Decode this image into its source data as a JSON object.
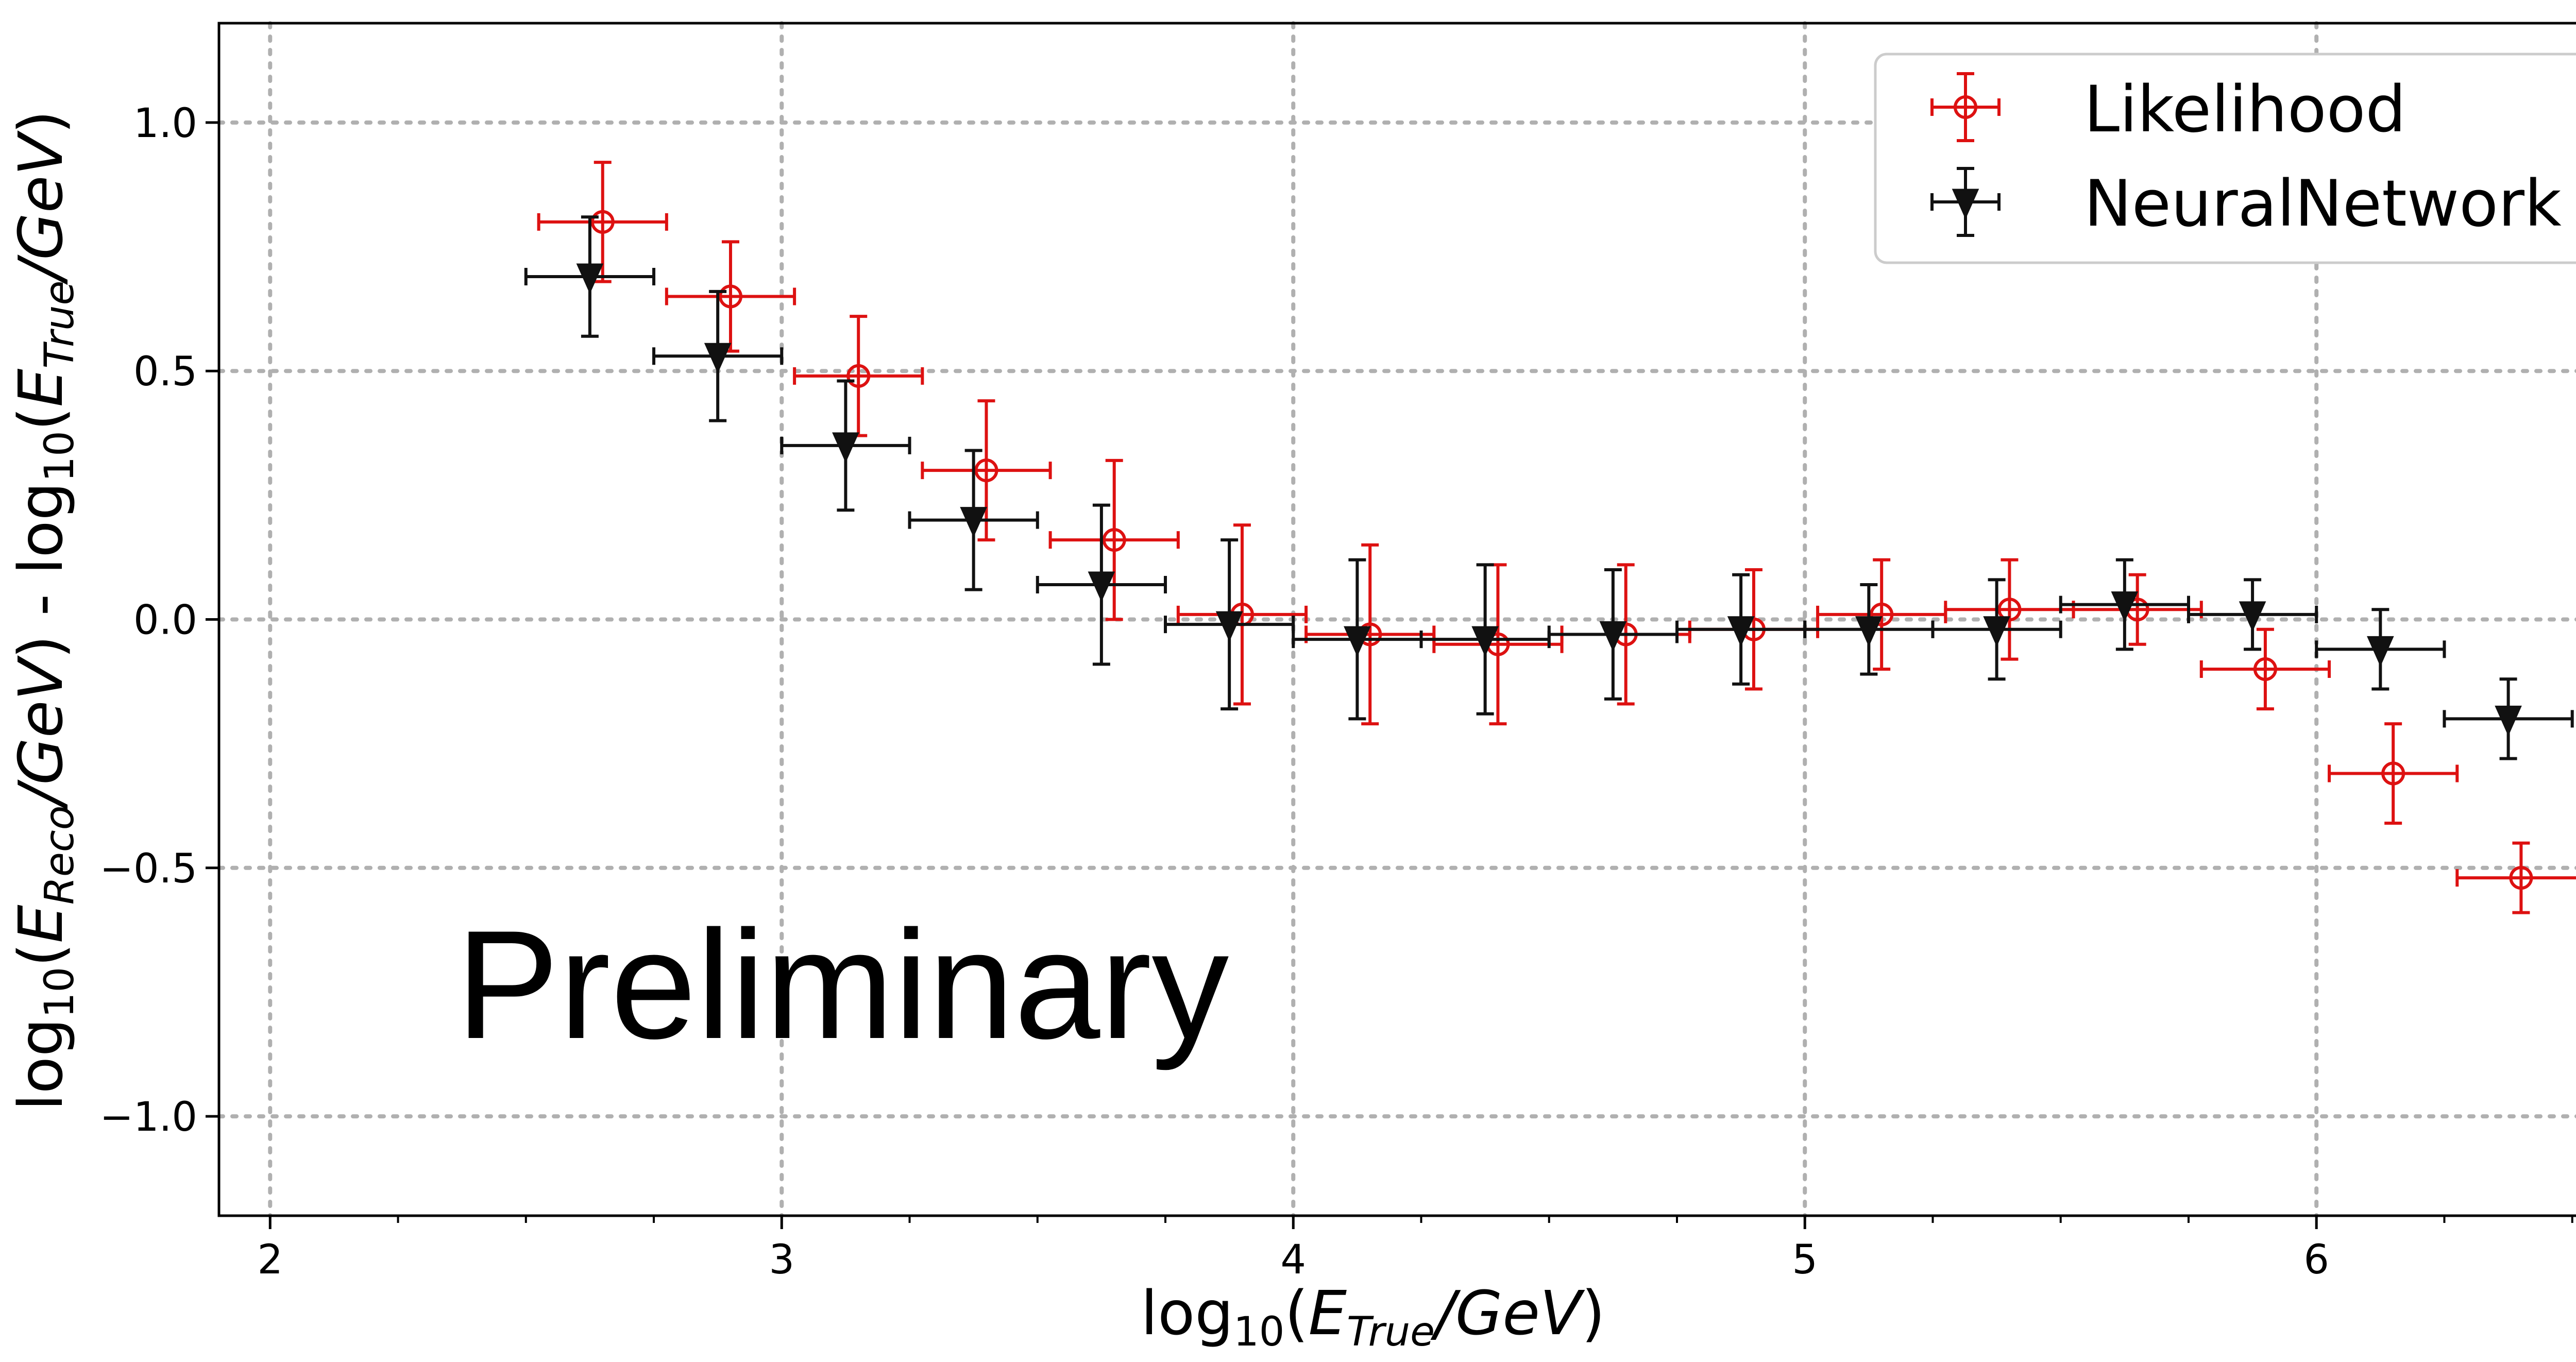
{
  "chart_data": {
    "type": "scatter",
    "title": "",
    "xlabel": "log10(E_True/GeV)",
    "ylabel": "log10(E_Reco/GeV) - log10(E_True/GeV)",
    "xlim": [
      1.9,
      6.6
    ],
    "ylim": [
      -1.2,
      1.2
    ],
    "xticks": [
      2,
      3,
      4,
      5,
      6
    ],
    "xtick_labels": [
      "2",
      "3",
      "4",
      "5",
      "6"
    ],
    "yticks": [
      -1.0,
      -0.5,
      0.0,
      0.5,
      1.0
    ],
    "ytick_labels": [
      "−1.0",
      "−0.5",
      "0.0",
      "0.5",
      "1.0"
    ],
    "grid": true,
    "legend_position": "top-right",
    "annotation": "Preliminary",
    "series": [
      {
        "name": "Likelihood",
        "color": "#dd1111",
        "marker": "open-circle",
        "x": [
          2.65,
          2.9,
          3.15,
          3.4,
          3.65,
          3.9,
          4.15,
          4.4,
          4.65,
          4.9,
          5.15,
          5.4,
          5.65,
          5.9,
          6.15,
          6.4
        ],
        "x_err": [
          0.125,
          0.125,
          0.125,
          0.125,
          0.125,
          0.125,
          0.125,
          0.125,
          0.125,
          0.125,
          0.125,
          0.125,
          0.125,
          0.125,
          0.125,
          0.125
        ],
        "y": [
          0.8,
          0.65,
          0.49,
          0.3,
          0.16,
          0.01,
          -0.03,
          -0.05,
          -0.03,
          -0.02,
          0.01,
          0.02,
          0.02,
          -0.1,
          -0.31,
          -0.52
        ],
        "y_err": [
          0.12,
          0.11,
          0.12,
          0.14,
          0.16,
          0.18,
          0.18,
          0.16,
          0.14,
          0.12,
          0.11,
          0.1,
          0.07,
          0.08,
          0.1,
          0.07
        ]
      },
      {
        "name": "NeuralNetwork",
        "color": "#111111",
        "marker": "filled-triangle-down",
        "x": [
          2.625,
          2.875,
          3.125,
          3.375,
          3.625,
          3.875,
          4.125,
          4.375,
          4.625,
          4.875,
          5.125,
          5.375,
          5.625,
          5.875,
          6.125,
          6.375
        ],
        "x_err": [
          0.125,
          0.125,
          0.125,
          0.125,
          0.125,
          0.125,
          0.125,
          0.125,
          0.125,
          0.125,
          0.125,
          0.125,
          0.125,
          0.125,
          0.125,
          0.125
        ],
        "y": [
          0.69,
          0.53,
          0.35,
          0.2,
          0.07,
          -0.01,
          -0.04,
          -0.04,
          -0.03,
          -0.02,
          -0.02,
          -0.02,
          0.03,
          0.01,
          -0.06,
          -0.2
        ],
        "y_err": [
          0.12,
          0.13,
          0.13,
          0.14,
          0.16,
          0.17,
          0.16,
          0.15,
          0.13,
          0.11,
          0.09,
          0.1,
          0.09,
          0.07,
          0.08,
          0.08
        ]
      }
    ]
  }
}
